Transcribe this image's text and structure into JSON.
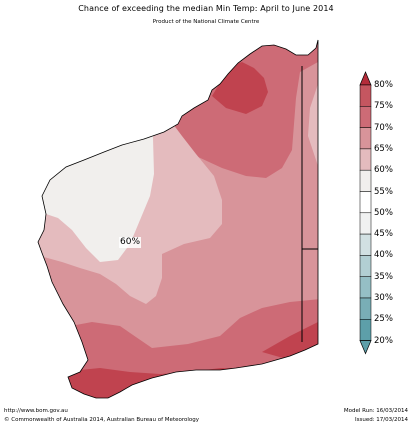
{
  "title": "Chance of exceeding the median Min Temp: April to June 2014",
  "subtitle": "Product of the National Climate Centre",
  "map": {
    "region_label": "60%",
    "colors": {
      "p80_plus": "#c0434f",
      "p70_75": "#cd6b76",
      "p65_70": "#d8949a",
      "p60_65": "#e4bbbe",
      "p55_60": "#f1efed",
      "outline": "#000000"
    }
  },
  "legend": {
    "labels": [
      "80%",
      "75%",
      "70%",
      "65%",
      "60%",
      "55%",
      "50%",
      "45%",
      "40%",
      "35%",
      "30%",
      "25%",
      "20%"
    ],
    "colors": [
      "#b42c3a",
      "#c55660",
      "#cd6b76",
      "#d8949a",
      "#e4bbbe",
      "#f1efed",
      "#ffffff",
      "#f0f1f1",
      "#d1e0e2",
      "#b2cfd3",
      "#95bfc5",
      "#79aeb6",
      "#5d9fa9"
    ]
  },
  "footer": {
    "url": "http://www.bom.gov.au",
    "copyright": "©  Commonwealth of Australia 2014, Australian Bureau of Meteorology",
    "model_run": "Model Run: 16/03/2014",
    "issued": "Issued: 17/03/2014"
  }
}
